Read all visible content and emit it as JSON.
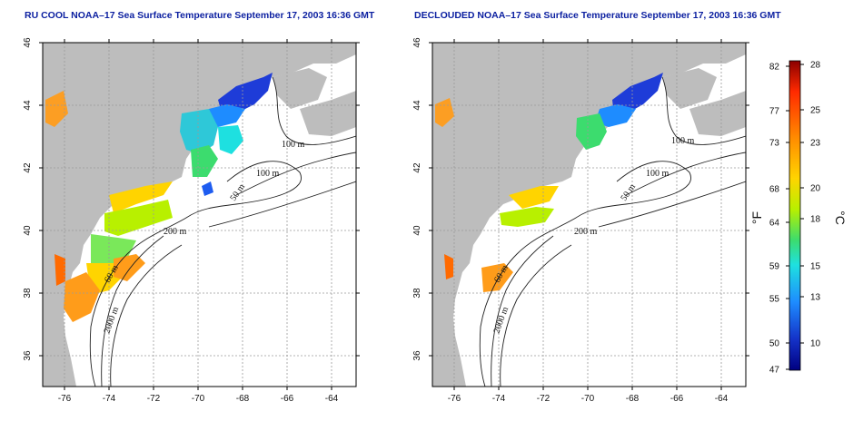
{
  "panels": [
    {
      "id": "left",
      "title": "RU COOL NOAA–17 Sea Surface Temperature September 17, 2003 16:36 GMT"
    },
    {
      "id": "right",
      "title": "DECLOUDED NOAA–17 Sea Surface Temperature September 17, 2003 16:36 GMT"
    }
  ],
  "map": {
    "lon_ticks": [
      "-76",
      "-74",
      "-72",
      "-70",
      "-68",
      "-66",
      "-64"
    ],
    "lat_ticks": [
      "36",
      "38",
      "40",
      "42",
      "44",
      "46"
    ],
    "contour_labels": [
      "100 m",
      "100 m",
      "50 m",
      "200 m",
      "60 m",
      "2000 m"
    ],
    "colors": {
      "land": "#bdbdbd",
      "frame": "#000000",
      "grid": "#9a9a9a"
    }
  },
  "colorbar": {
    "fahrenheit_ticks": [
      "82",
      "77",
      "73",
      "68",
      "64",
      "59",
      "55",
      "50",
      "47"
    ],
    "celsius_ticks": [
      "28",
      "25",
      "23",
      "20",
      "18",
      "15",
      "13",
      "10"
    ],
    "fahrenheit_unit": "°F",
    "celsius_unit": "°C",
    "gradient": [
      "#8b0000",
      "#ff2a00",
      "#ff8c00",
      "#ffd400",
      "#b8f000",
      "#3cdc6e",
      "#1ee0e0",
      "#1e8cff",
      "#1432c8",
      "#000080"
    ]
  }
}
